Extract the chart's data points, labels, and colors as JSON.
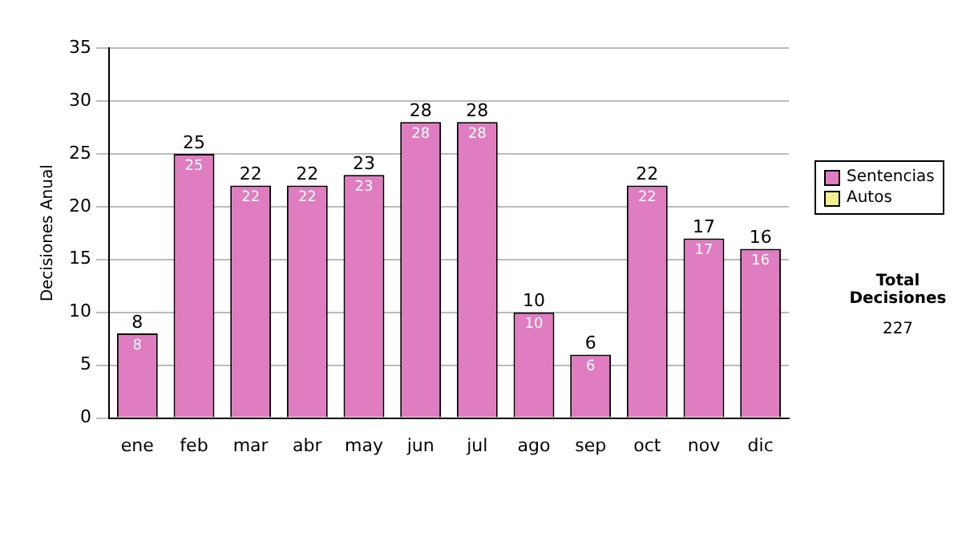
{
  "chart_data": {
    "type": "bar",
    "stacked": true,
    "ylabel": "Decisiones Anual",
    "categories": [
      "ene",
      "feb",
      "mar",
      "abr",
      "may",
      "jun",
      "jul",
      "ago",
      "sep",
      "oct",
      "nov",
      "dic"
    ],
    "series": [
      {
        "name": "Sentencias",
        "color": "#e07cc0",
        "values": [
          8,
          25,
          22,
          22,
          23,
          28,
          28,
          10,
          6,
          22,
          17,
          16
        ],
        "value_labels": [
          "8",
          "25",
          "22",
          "22",
          "23",
          "28",
          "28",
          "10",
          "6",
          "22",
          "17",
          "16"
        ]
      },
      {
        "name": "Autos",
        "color": "#f0f090",
        "values": [
          0,
          0,
          0,
          0,
          0,
          0,
          0,
          0,
          0,
          0,
          0,
          0
        ]
      }
    ],
    "totals": [
      "8",
      "25",
      "22",
      "22",
      "23",
      "28",
      "28",
      "10",
      "6",
      "22",
      "17",
      "16"
    ],
    "ylim": [
      0,
      35
    ],
    "yticks": [
      0,
      5,
      10,
      15,
      20,
      25,
      30,
      35
    ],
    "grid": "y",
    "legend": "right",
    "annotations": [
      "Total Decisiones",
      "227"
    ]
  }
}
